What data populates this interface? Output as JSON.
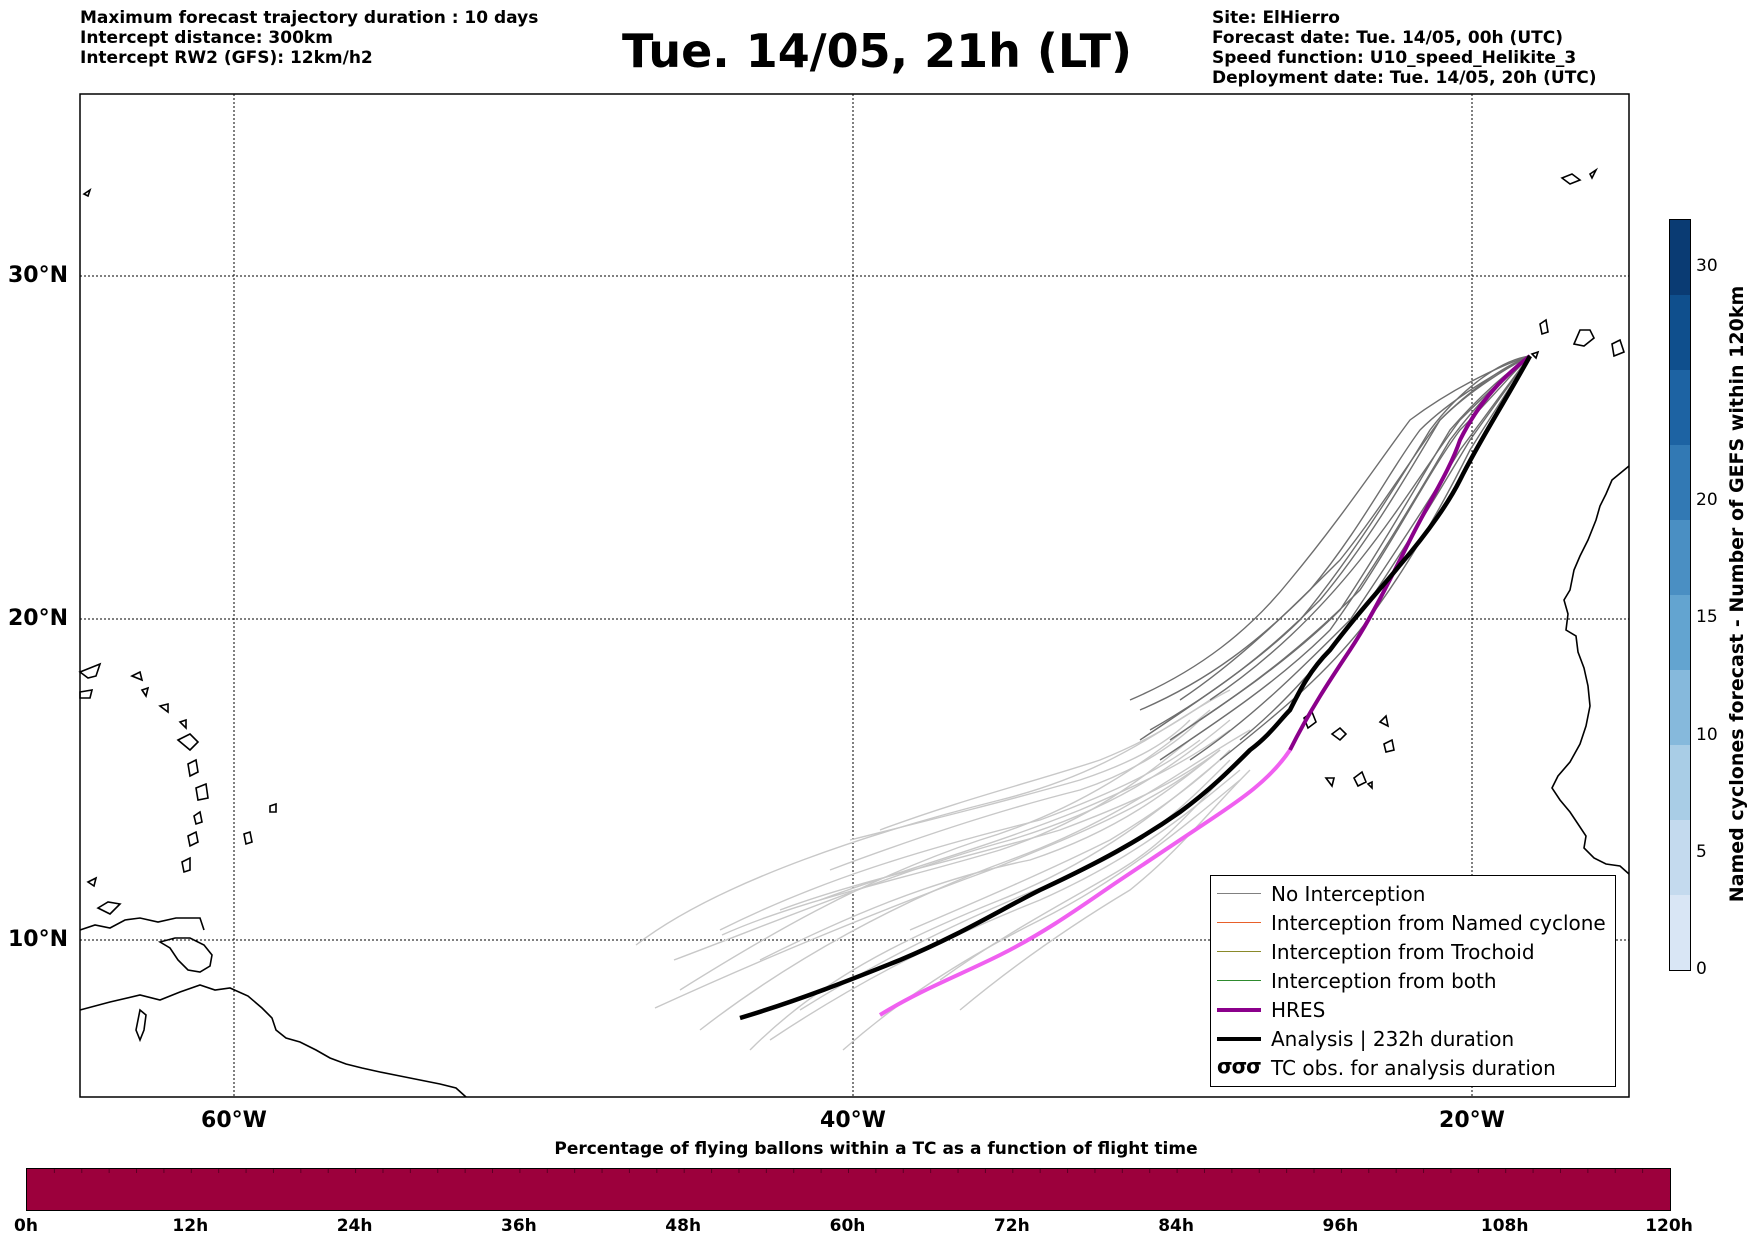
{
  "header": {
    "left_lines": [
      "Maximum forecast trajectory duration : 10 days",
      "Intercept distance: 300km",
      "Intercept RW2 (GFS):  12km/h2"
    ],
    "title": "Tue. 14/05, 21h (LT)",
    "right_lines": [
      "Site: ElHierro",
      "Forecast date: Tue. 14/05, 00h (UTC)",
      "Speed function: U10_speed_Helikite_3",
      "Deployment date: Tue. 14/05, 20h (UTC)"
    ]
  },
  "map": {
    "lat_labels": [
      "30°N",
      "20°N",
      "10°N"
    ],
    "lon_labels": [
      "60°W",
      "40°W",
      "20°W"
    ]
  },
  "legend": {
    "items": [
      {
        "label": "No Interception",
        "color": "#808080"
      },
      {
        "label": "Interception from Named cyclone",
        "color": "#e8602a"
      },
      {
        "label": "Interception from Trochoid",
        "color": "#8a8a2a"
      },
      {
        "label": "Interception from both",
        "color": "#2e8b2e"
      },
      {
        "label": "HRES",
        "color": "#8b008b"
      },
      {
        "label": "Analysis | 232h duration",
        "color": "#000000"
      },
      {
        "label": "TC obs. for analysis duration",
        "symbol": "σσσ"
      }
    ]
  },
  "horizontal_colorbar": {
    "title": "Percentage of flying ballons within a TC as a function of flight time",
    "color": "#9c003c",
    "tick_labels": [
      "0h",
      "12h",
      "24h",
      "36h",
      "48h",
      "60h",
      "72h",
      "84h",
      "96h",
      "108h",
      "120h"
    ]
  },
  "vertical_colorbar": {
    "label": "Named cyclones forecast - Number of GEFS within 120km",
    "tick_labels": [
      "0",
      "5",
      "10",
      "15",
      "20",
      "30"
    ],
    "tick_values": [
      0,
      5,
      10,
      15,
      20,
      30
    ],
    "max_value": 32,
    "colors": [
      "#d9e6f5",
      "#c4daee",
      "#a9cde6",
      "#86b9dc",
      "#63a4d0",
      "#4a8fc3",
      "#3279b4",
      "#1d63a3",
      "#0f4f8d",
      "#0a3b73"
    ]
  }
}
